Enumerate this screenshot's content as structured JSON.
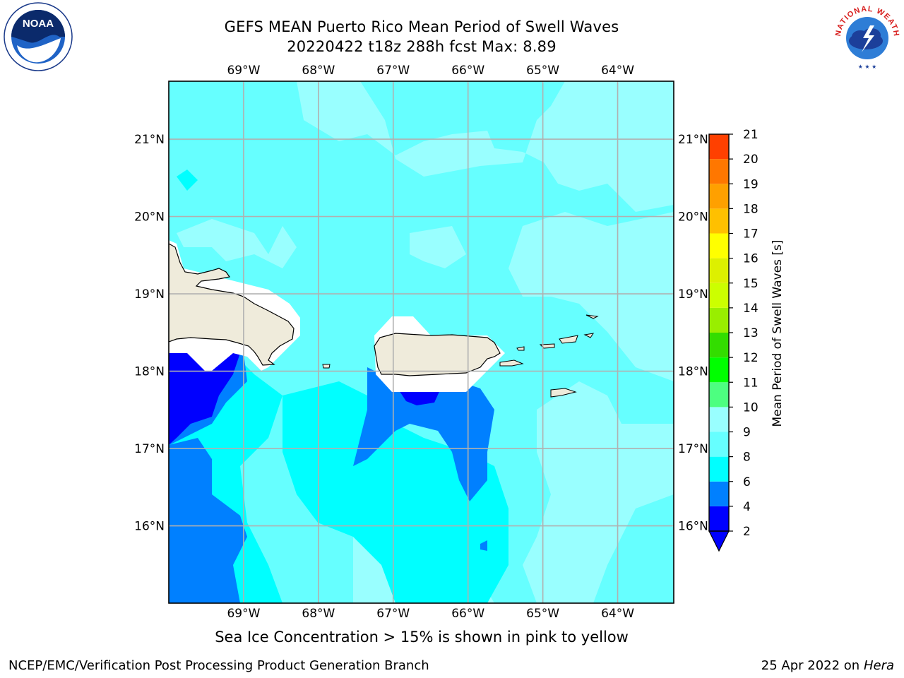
{
  "header": {
    "title_line1": "GEFS MEAN Puerto Rico Mean Period of Swell Waves",
    "title_line2": "20220422 t18z 288h fcst   Max: 8.89"
  },
  "map": {
    "lon_labels": [
      "69°W",
      "68°W",
      "67°W",
      "66°W",
      "65°W",
      "64°W"
    ],
    "lat_labels": [
      "21°N",
      "20°N",
      "19°N",
      "18°N",
      "17°N",
      "16°N"
    ],
    "lon_values": [
      -69,
      -68,
      -67,
      -66,
      -65,
      -64
    ],
    "lat_values": [
      21,
      20,
      19,
      18,
      17,
      16
    ],
    "lon_range": [
      -70,
      -63.25
    ],
    "lat_range": [
      15,
      21.75
    ],
    "land_color": "#efebdb",
    "grid": true
  },
  "colorbar": {
    "label": "Mean Period of Swell Waves [s]",
    "ticks": [
      "2",
      "4",
      "6",
      "8",
      "9",
      "10",
      "11",
      "12",
      "13",
      "14",
      "15",
      "16",
      "17",
      "18",
      "19",
      "20",
      "21"
    ],
    "colors": [
      "#0000ff",
      "#0080ff",
      "#00ffff",
      "#66ffff",
      "#99ffff",
      "#4dff80",
      "#00ff00",
      "#33dd00",
      "#99ee00",
      "#ccff00",
      "#ddf000",
      "#ffff00",
      "#ffc000",
      "#ffa000",
      "#ff7700",
      "#ff4000",
      "#ff0000"
    ],
    "extend_color": "#0000ff"
  },
  "notes": {
    "sea_ice": "Sea Ice Concentration > 15% is shown in pink to yellow"
  },
  "footer": {
    "left": "NCEP/EMC/Verification Post Processing Product Generation Branch",
    "date": "25 Apr 2022 on ",
    "machine": "Hera"
  },
  "logos": {
    "noaa": "NOAA",
    "nws_text": "NATIONAL WEATHER SERVICE"
  }
}
